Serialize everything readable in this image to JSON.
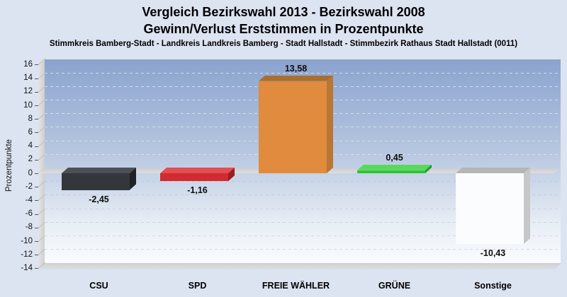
{
  "title": {
    "line1": "Vergleich Bezirkswahl 2013 - Bezirkswahl 2008",
    "line2": "Gewinn/Verlust Erststimmen in Prozentpunkte"
  },
  "subtitle": "Stimmkreis Bamberg-Stadt - Landkreis Landkreis Bamberg - Stadt Hallstadt - Stimmbezirk Rathaus Stadt Hallstadt (0011)",
  "chart_data": {
    "type": "bar",
    "categories": [
      "CSU",
      "SPD",
      "FREIE WÄHLER",
      "GRÜNE",
      "Sonstige"
    ],
    "values": [
      -2.45,
      -1.16,
      13.58,
      0.45,
      -10.43
    ],
    "value_labels": [
      "-2,45",
      "-1,16",
      "13,58",
      "0,45",
      "-10,43"
    ],
    "title": "Vergleich Bezirkswahl 2013 - Bezirkswahl 2008 / Gewinn/Verlust Erststimmen in Prozentpunkte",
    "xlabel": "",
    "ylabel": "Prozentpunkte",
    "ylim": [
      -14,
      16
    ],
    "ytick_step": 2,
    "grid": true,
    "legend": false,
    "style": "3d-bars",
    "bar_colors": [
      {
        "name": "CSU",
        "front": "#33373b",
        "top": "#4b5056",
        "side": "#202225"
      },
      {
        "name": "SPD",
        "front": "#cf2b30",
        "top": "#e44d52",
        "side": "#9c1c21"
      },
      {
        "name": "FREIE WÄHLER",
        "front": "#e08b3d",
        "top": "#aa6f2d",
        "side": "#b97636"
      },
      {
        "name": "GRÜNE",
        "front": "#2fc437",
        "top": "#57da5c",
        "side": "#239e2b"
      },
      {
        "name": "Sonstige",
        "front": "#fbfcfd",
        "top": "#b4b5b7",
        "side": "#c6c7c9"
      }
    ],
    "colors": {
      "page_background": "#dce3f1",
      "wall_gradient_top": "#8aa3ce",
      "wall_gradient_bottom": "#fafcfe",
      "zero_plane": "#d2d5d9",
      "text": "#000000"
    }
  }
}
